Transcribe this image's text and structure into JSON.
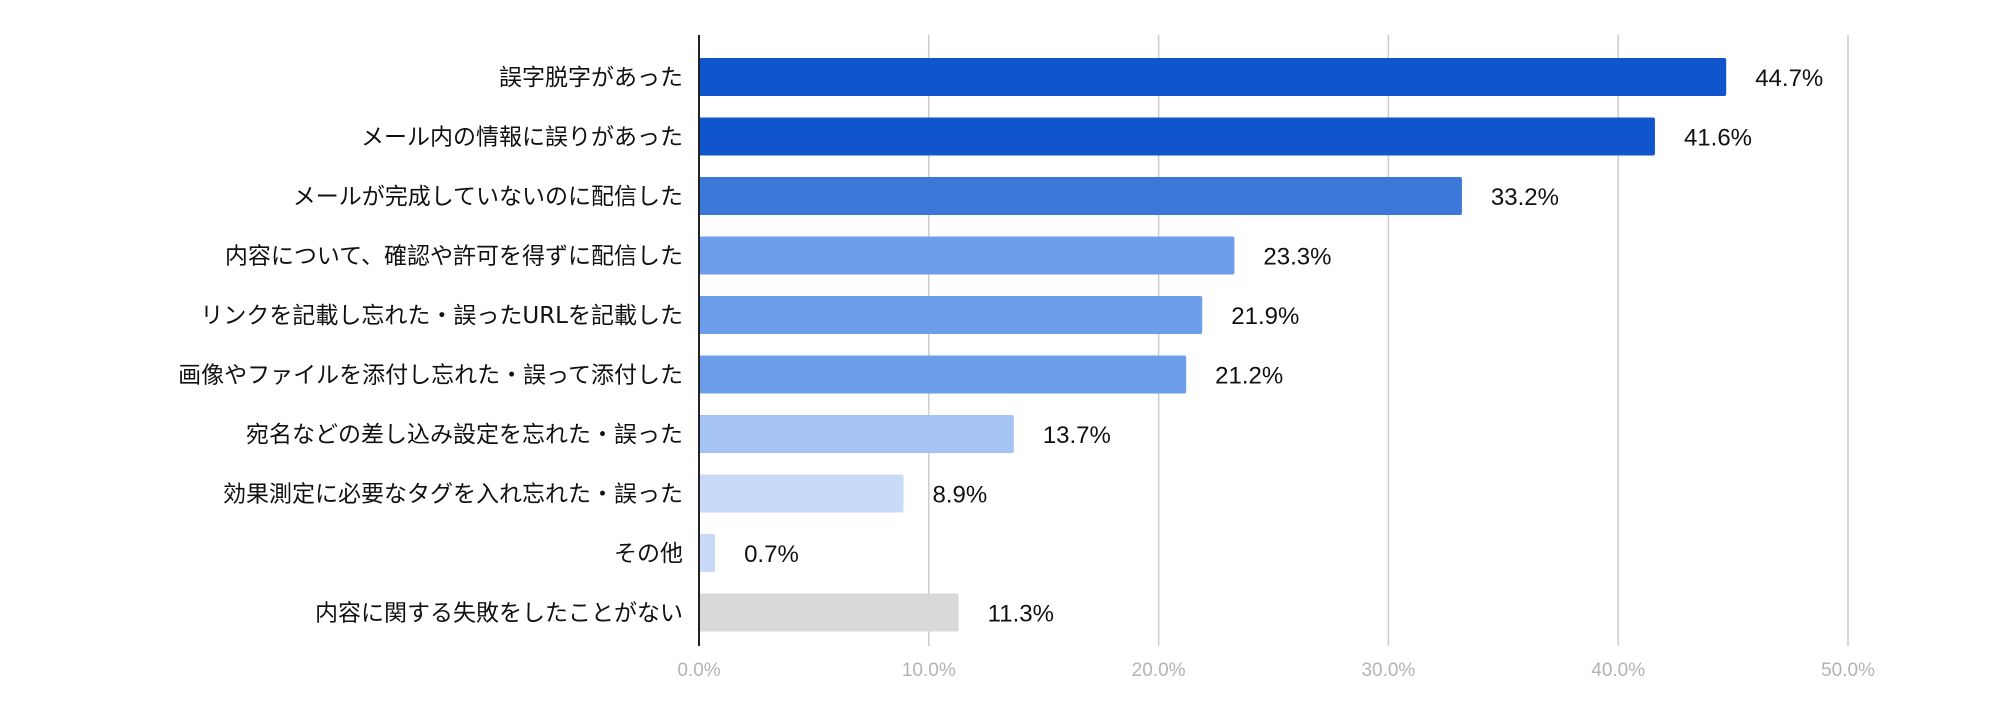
{
  "chart_data": {
    "type": "bar",
    "orientation": "horizontal",
    "title": "",
    "xlabel": "",
    "ylabel": "",
    "xlim": [
      0,
      50
    ],
    "grid": true,
    "categories": [
      "誤字脱字があった",
      "メール内の情報に誤りがあった",
      "メールが完成していないのに配信した",
      "内容について、確認や許可を得ずに配信した",
      "リンクを記載し忘れた・誤ったURLを記載した",
      "画像やファイルを添付し忘れた・誤って添付した",
      "宛名などの差し込み設定を忘れた・誤った",
      "効果測定に必要なタグを入れ忘れた・誤った",
      "その他",
      "内容に関する失敗をしたことがない"
    ],
    "values": [
      44.7,
      41.6,
      33.2,
      23.3,
      21.9,
      21.2,
      13.7,
      8.9,
      0.7,
      11.3
    ],
    "value_labels": [
      "44.7%",
      "41.6%",
      "33.2%",
      "23.3%",
      "21.9%",
      "21.2%",
      "13.7%",
      "8.9%",
      "0.7%",
      "11.3%"
    ],
    "bar_colors": [
      "#1155cc",
      "#1155cc",
      "#3c78d8",
      "#6d9eeb",
      "#6d9eeb",
      "#6d9eeb",
      "#a4c2f4",
      "#c9daf8",
      "#c9daf8",
      "#d9d9d9"
    ],
    "x_ticks": [
      0,
      10,
      20,
      30,
      40,
      50
    ],
    "x_tick_labels": [
      "0.0%",
      "10.0%",
      "20.0%",
      "30.0%",
      "40.0%",
      "50.0%"
    ]
  }
}
